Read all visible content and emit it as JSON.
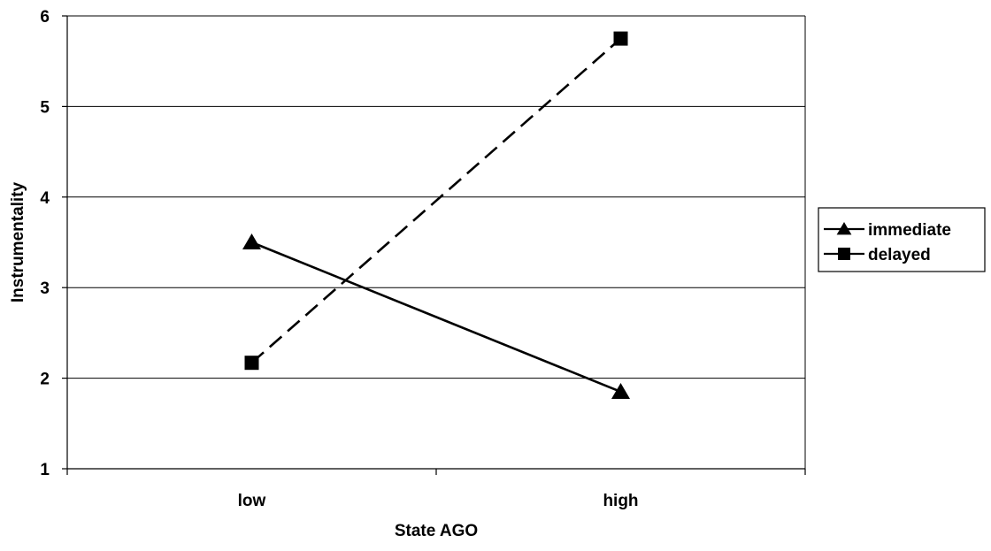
{
  "chart_data": {
    "type": "line",
    "title": "",
    "xlabel": "State AGO",
    "ylabel": "Instrumentality",
    "categories": [
      "low",
      "high"
    ],
    "ylim": [
      1,
      6
    ],
    "yticks": [
      "1",
      "2",
      "3",
      "4",
      "5",
      "6"
    ],
    "grid": true,
    "legend_position": "right",
    "series": [
      {
        "name": "immediate",
        "values": [
          3.5,
          1.85
        ],
        "marker": "triangle",
        "line_style": "solid",
        "color": "#000000"
      },
      {
        "name": "delayed",
        "values": [
          2.17,
          5.75
        ],
        "marker": "square",
        "line_style": "dashed",
        "color": "#000000"
      }
    ]
  }
}
